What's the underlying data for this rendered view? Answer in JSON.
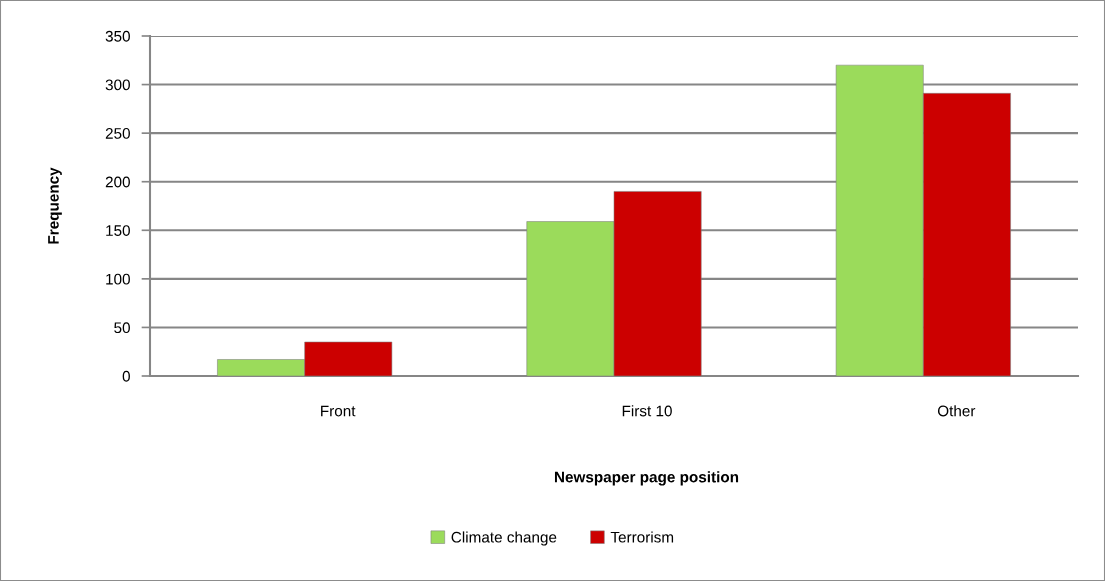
{
  "chart_data": {
    "type": "bar",
    "xlabel": "Newspaper page position",
    "ylabel": "Frequency",
    "categories": [
      "Front",
      "First 10",
      "Other"
    ],
    "series": [
      {
        "name": "Climate change",
        "color": "#9bdb5b",
        "values": [
          17,
          159,
          320
        ]
      },
      {
        "name": "Terrorism",
        "color": "#cc0000",
        "values": [
          35,
          190,
          291
        ]
      }
    ],
    "ylim": [
      0,
      350
    ],
    "yticks": [
      0,
      50,
      100,
      150,
      200,
      250,
      300,
      350
    ],
    "grid": "y",
    "legend": "bottom"
  }
}
